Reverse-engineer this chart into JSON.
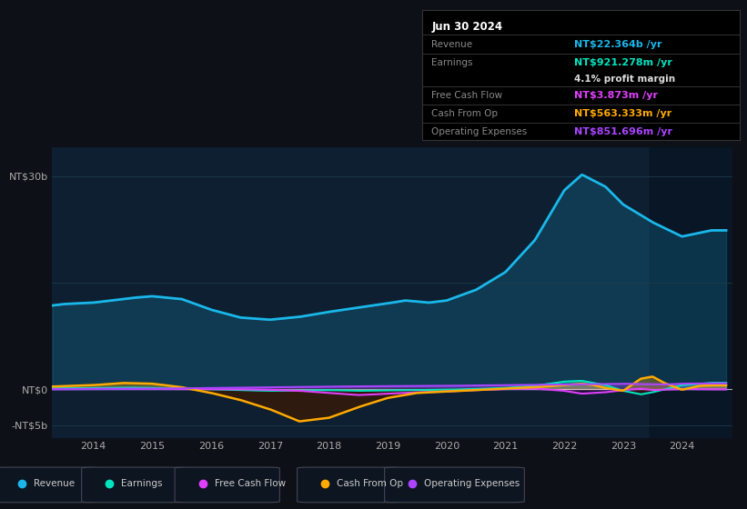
{
  "bg_color": "#0d1117",
  "plot_bg_color": "#0d1f30",
  "colors": {
    "revenue": "#1ab7ea",
    "earnings": "#00e5c0",
    "free_cash_flow": "#e040fb",
    "cash_from_op": "#ffaa00",
    "operating_expenses": "#aa44ff"
  },
  "legend": [
    {
      "label": "Revenue",
      "color": "#1ab7ea"
    },
    {
      "label": "Earnings",
      "color": "#00e5c0"
    },
    {
      "label": "Free Cash Flow",
      "color": "#e040fb"
    },
    {
      "label": "Cash From Op",
      "color": "#ffaa00"
    },
    {
      "label": "Operating Expenses",
      "color": "#aa44ff"
    }
  ],
  "tooltip": {
    "date": "Jun 30 2024",
    "revenue_label": "Revenue",
    "revenue_value": "NT$22.364b",
    "revenue_color": "#1ab7ea",
    "earnings_label": "Earnings",
    "earnings_value": "NT$921.278m",
    "earnings_color": "#00e5c0",
    "profit_margin": "4.1%",
    "fcf_label": "Free Cash Flow",
    "fcf_value": "NT$3.873m",
    "fcf_color": "#e040fb",
    "cop_label": "Cash From Op",
    "cop_value": "NT$563.333m",
    "cop_color": "#ffaa00",
    "opex_label": "Operating Expenses",
    "opex_value": "NT$851.696m",
    "opex_color": "#aa44ff"
  },
  "xlim_start": 2013.3,
  "xlim_end": 2024.85,
  "ylim_min": -6800000000,
  "ylim_max": 34000000000,
  "ytick_vals": [
    30000000000,
    15000000000,
    0,
    -5000000000
  ],
  "ytick_labels": [
    "NT$30b",
    "",
    "NT$0",
    "-NT$5b"
  ],
  "xtick_positions": [
    2014,
    2015,
    2016,
    2017,
    2018,
    2019,
    2020,
    2021,
    2022,
    2023,
    2024
  ],
  "xtick_labels": [
    "2014",
    "2015",
    "2016",
    "2017",
    "2018",
    "2019",
    "2020",
    "2021",
    "2022",
    "2023",
    "2024"
  ]
}
